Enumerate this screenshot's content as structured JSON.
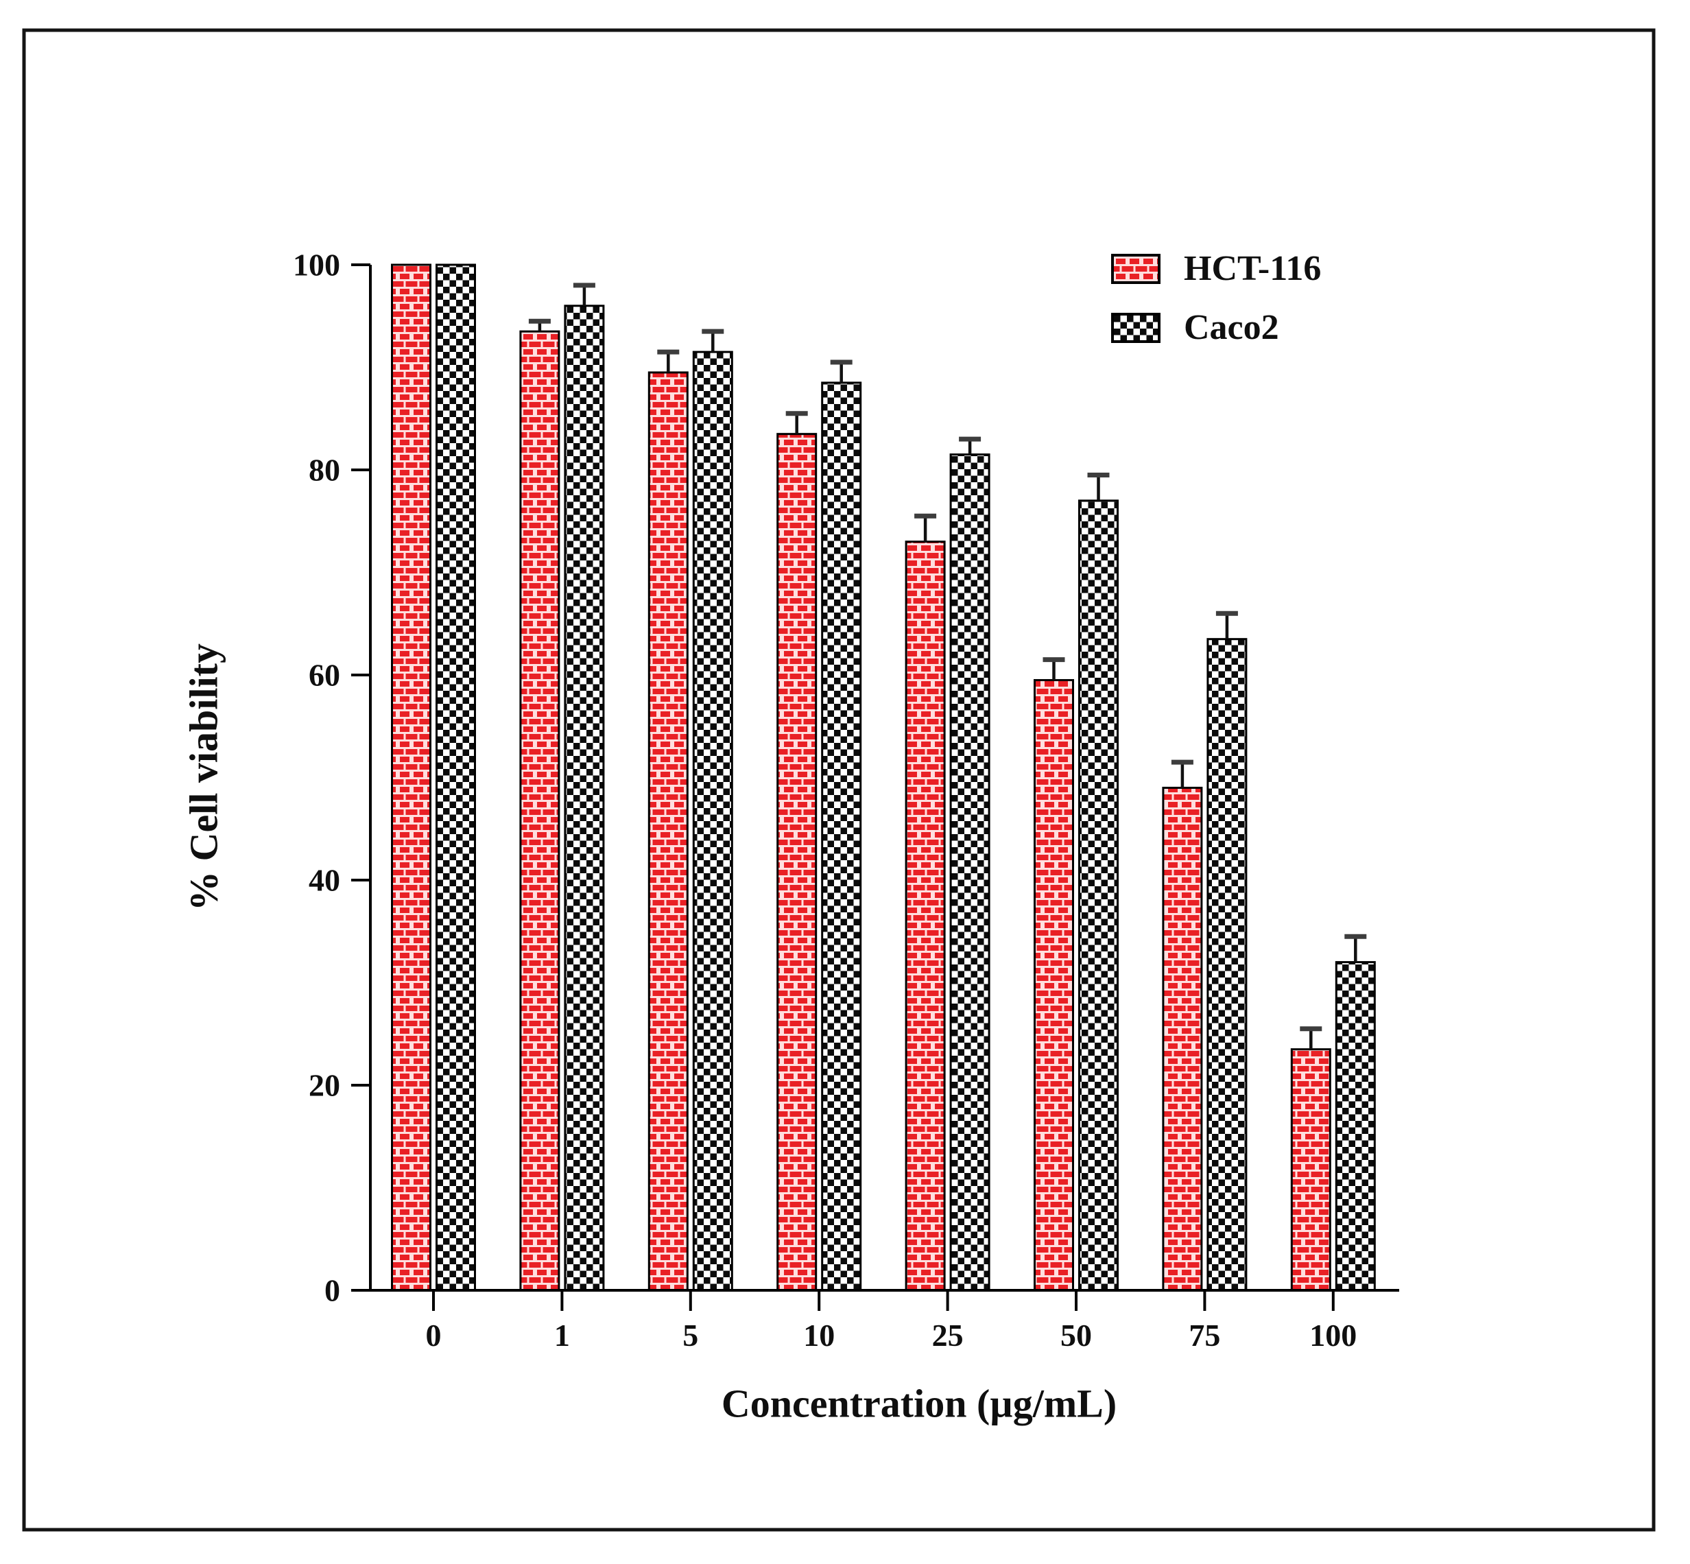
{
  "figure": {
    "xlabel": "Concentration (µg/mL)",
    "ylabel": "% Cell viability"
  },
  "legend": {
    "items": [
      {
        "label": "HCT-116",
        "swatch": "red-brick-pattern"
      },
      {
        "label": "Caco2",
        "swatch": "black-checker-pattern"
      }
    ]
  },
  "chart_data": {
    "type": "bar",
    "title": "",
    "xlabel": "Concentration (µg/mL)",
    "ylabel": "% Cell viability",
    "categories": [
      "0",
      "1",
      "5",
      "10",
      "25",
      "50",
      "75",
      "100"
    ],
    "series": [
      {
        "name": "HCT-116",
        "pattern": "red-brick",
        "values": [
          100,
          93.5,
          89.5,
          83.5,
          73,
          59.5,
          49,
          23.5
        ],
        "errors_plus": [
          0,
          1,
          2,
          2,
          2.5,
          2,
          2.5,
          2
        ]
      },
      {
        "name": "Caco2",
        "pattern": "black-checker",
        "values": [
          100,
          96,
          91.5,
          88.5,
          81.5,
          77,
          63.5,
          32
        ],
        "errors_plus": [
          0,
          2,
          2,
          2,
          1.5,
          2.5,
          2.5,
          2.5
        ]
      }
    ],
    "y_ticks": [
      0,
      20,
      40,
      60,
      80,
      100
    ],
    "ylim": [
      0,
      100
    ],
    "grid": false,
    "legend_position": "top-right-inside",
    "error_bars": "plus-direction-only",
    "colors": {
      "brick_red": "#e92025",
      "mortar_line": "#ffdede",
      "checker_black": "#0b0b0b",
      "checker_white": "#ffffff",
      "bar_outline": "#000000",
      "axis": "#000000",
      "error_stem": "#111111",
      "error_cap": "#3d3d3d",
      "text": "#0f0f0f",
      "frame": "#141414",
      "background": "#ffffff"
    }
  }
}
